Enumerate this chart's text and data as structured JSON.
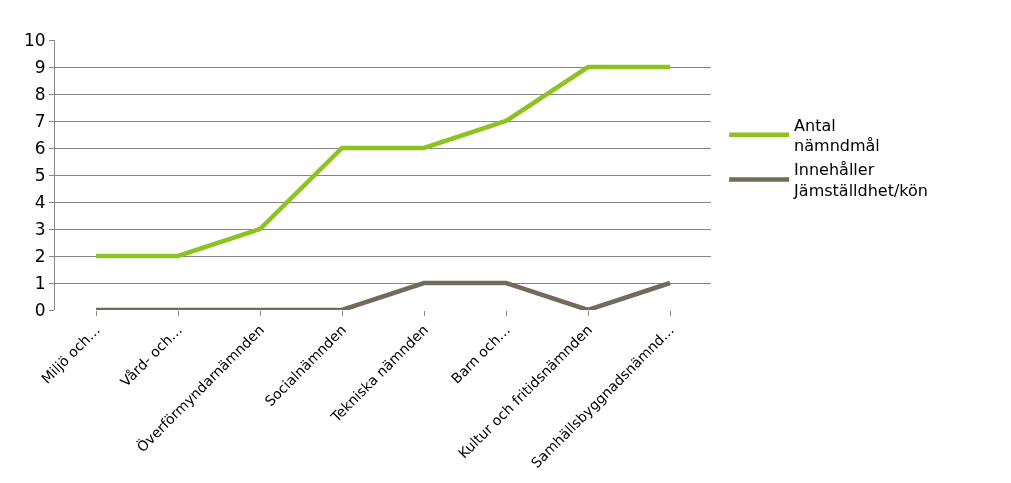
{
  "chart_data": {
    "type": "line",
    "categories": [
      "Miljö och…",
      "Vård- och…",
      "Överförmyndarnämnden",
      "Socialnämnden",
      "Tekniska nämnden",
      "Barn och…",
      "Kultur och fritidsnämnden",
      "Samhällsbyggnadsnämnd…"
    ],
    "series": [
      {
        "name": "Antal nämndmål",
        "color": "#8dc21f",
        "values": [
          2,
          2,
          3,
          6,
          6,
          7,
          9,
          9
        ]
      },
      {
        "name": "Innehåller Jämställdhet/kön",
        "color": "#73695c",
        "values": [
          0,
          0,
          0,
          0,
          1,
          1,
          0,
          1
        ]
      }
    ],
    "ylim": [
      0,
      10
    ],
    "yticks": [
      0,
      1,
      2,
      3,
      4,
      5,
      6,
      7,
      8,
      9,
      10
    ],
    "grid": "y",
    "legend": "right",
    "marker": "none",
    "line_style": "solid"
  }
}
